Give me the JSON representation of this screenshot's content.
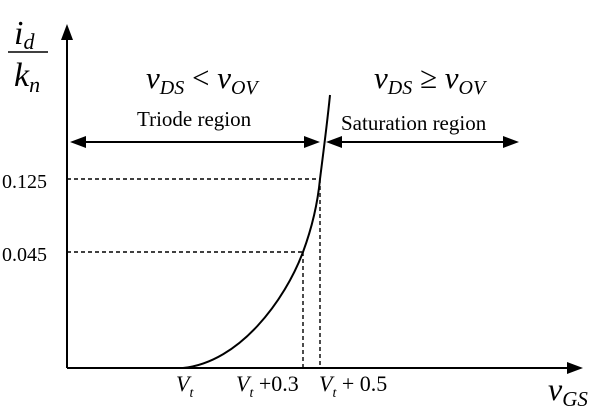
{
  "axes": {
    "y_label": {
      "numerator": "i",
      "numerator_sub": "d",
      "denominator": "k",
      "denominator_sub": "n"
    },
    "x_label": {
      "base": "v",
      "sub": "GS"
    }
  },
  "ticks": {
    "y": [
      {
        "label": "0.125",
        "value": 0.125
      },
      {
        "label": "0.045",
        "value": 0.045
      }
    ],
    "x": [
      {
        "base": "V",
        "sub": "t",
        "suffix": "",
        "offset": 0
      },
      {
        "base": "V",
        "sub": "t",
        "suffix": " +0.3",
        "offset": 0.3
      },
      {
        "base": "V",
        "sub": "t",
        "suffix": " + 0.5",
        "offset": 0.5
      }
    ]
  },
  "regions": {
    "triode": {
      "title": "Triode region",
      "condition": {
        "v": "v",
        "v_sub": "DS",
        "op": " < ",
        "v2": "v",
        "v2_sub": "OV"
      }
    },
    "saturation": {
      "title": "Saturation region",
      "condition": {
        "v": "v",
        "v_sub": "DS",
        "op": " ≥ ",
        "v2": "v",
        "v2_sub": "OV"
      }
    }
  },
  "curve": {
    "shape": "square-law",
    "color": "#000000"
  }
}
